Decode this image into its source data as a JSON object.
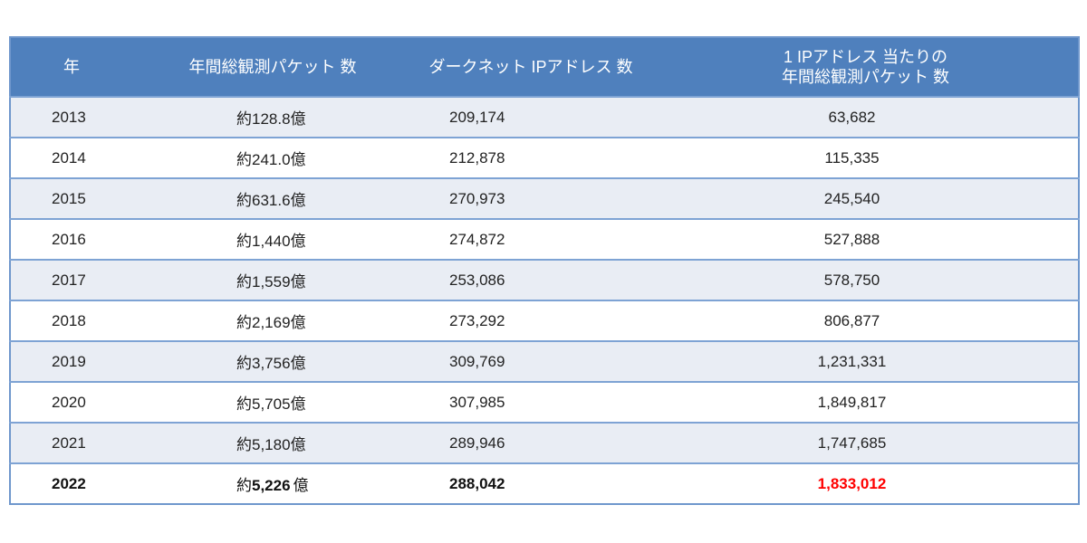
{
  "table": {
    "headers": {
      "year": "年",
      "total_packets": "年間総観測パケット 数",
      "darknet_ips": "ダークネット IPアドレス 数",
      "per_ip_line1": "1 IPアドレス 当たりの",
      "per_ip_line2": "年間総観測パケット 数"
    },
    "unit_prefix": "約",
    "unit_suffix": "億",
    "rows": [
      {
        "year": "2013",
        "total": "128.8",
        "ips": "209,174",
        "per_ip": "63,682"
      },
      {
        "year": "2014",
        "total": "241.0",
        "ips": "212,878",
        "per_ip": "115,335"
      },
      {
        "year": "2015",
        "total": "631.6",
        "ips": "270,973",
        "per_ip": "245,540"
      },
      {
        "year": "2016",
        "total": "1,440",
        "ips": "274,872",
        "per_ip": "527,888"
      },
      {
        "year": "2017",
        "total": "1,559",
        "ips": "253,086",
        "per_ip": "578,750"
      },
      {
        "year": "2018",
        "total": "2,169",
        "ips": "273,292",
        "per_ip": "806,877"
      },
      {
        "year": "2019",
        "total": "3,756",
        "ips": "309,769",
        "per_ip": "1,231,331"
      },
      {
        "year": "2020",
        "total": "5,705",
        "ips": "307,985",
        "per_ip": "1,849,817"
      },
      {
        "year": "2021",
        "total": "5,180",
        "ips": "289,946",
        "per_ip": "1,747,685"
      },
      {
        "year": "2022",
        "total": "5,226",
        "ips": "288,042",
        "per_ip": "1,833,012",
        "highlight": true
      }
    ]
  },
  "colors": {
    "header_bg": "#4f80bd",
    "row_alt_bg": "#e9edf4",
    "border": "#7ea3d4",
    "highlight_value": "#ff0000"
  }
}
